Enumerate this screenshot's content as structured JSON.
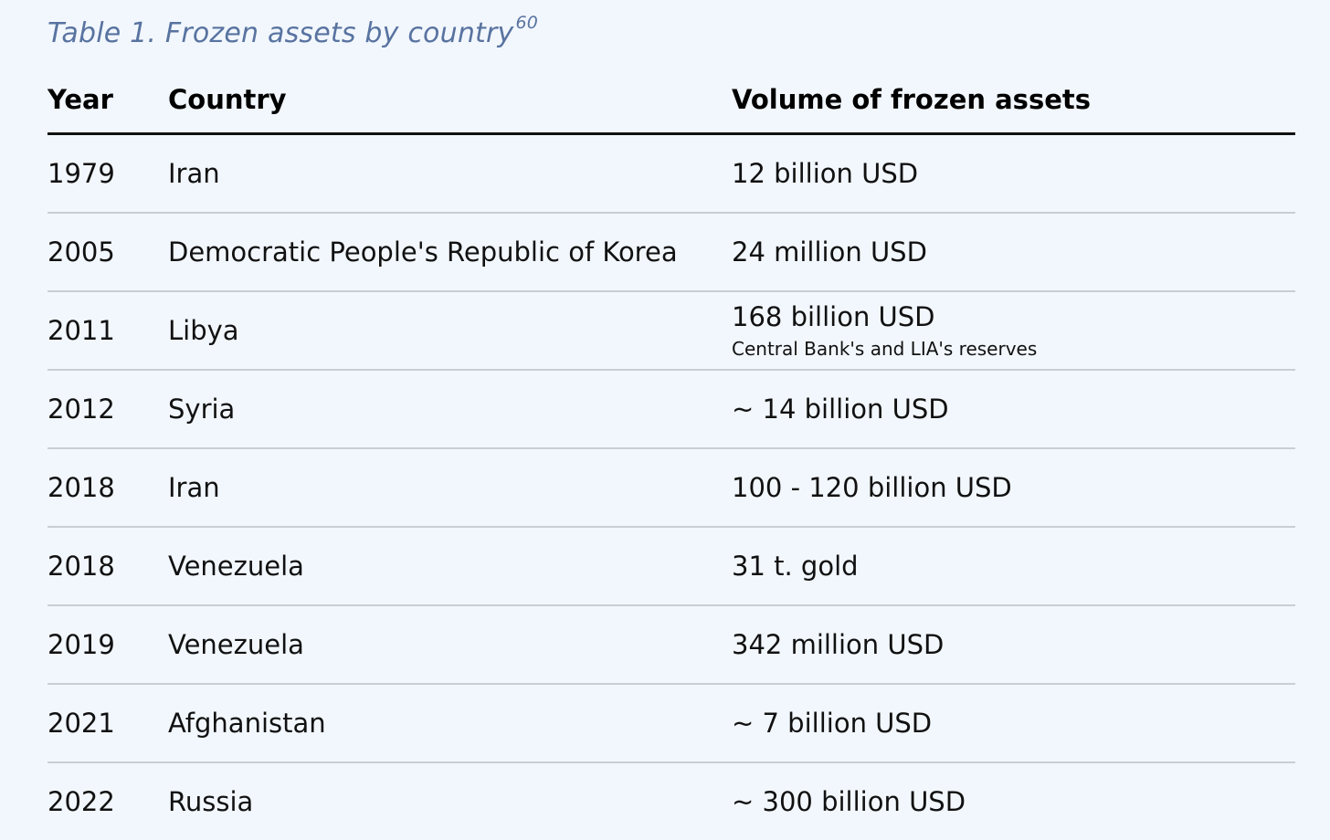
{
  "caption": {
    "text": "Table 1. Frozen assets by country",
    "footnote": "60"
  },
  "table": {
    "headers": [
      "Year",
      "Country",
      "Volume of frozen assets"
    ],
    "rows": [
      {
        "year": "1979",
        "country": "Iran",
        "volume": "12 billion USD",
        "note": ""
      },
      {
        "year": "2005",
        "country": "Democratic People's Republic of Korea",
        "volume": "24 million USD",
        "note": ""
      },
      {
        "year": "2011",
        "country": "Libya",
        "volume": "168 billion USD",
        "note": "Central Bank's and LIA's reserves"
      },
      {
        "year": "2012",
        "country": "Syria",
        "volume": "~ 14 billion USD",
        "note": ""
      },
      {
        "year": "2018",
        "country": "Iran",
        "volume": "100 - 120 billion USD",
        "note": ""
      },
      {
        "year": "2018",
        "country": "Venezuela",
        "volume": "31 t. gold",
        "note": ""
      },
      {
        "year": "2019",
        "country": "Venezuela",
        "volume": "342 million USD",
        "note": ""
      },
      {
        "year": "2021",
        "country": "Afghanistan",
        "volume": "~ 7 billion USD",
        "note": ""
      },
      {
        "year": "2022",
        "country": "Russia",
        "volume": "~ 300 billion USD",
        "note": ""
      }
    ]
  },
  "colors": {
    "background": "#f2f7fd",
    "caption": "#5873a0",
    "rule_heavy": "#111111",
    "rule_light": "#c9ced4"
  }
}
